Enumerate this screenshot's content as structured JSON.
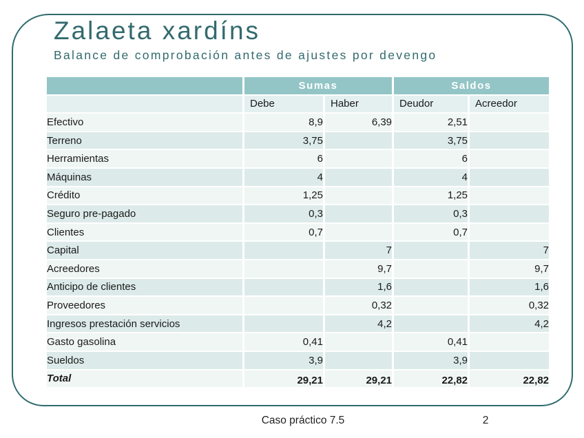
{
  "slide": {
    "title": "Zalaeta xardíns",
    "subtitle": "Balance de comprobación antes de ajustes por devengo",
    "footer_caption": "Caso práctico 7.5",
    "page_number": "2"
  },
  "colors": {
    "accent_teal": "#2E6B6D",
    "header_band": "#93C5C6",
    "subheader_bg": "#E4EFEF",
    "row_light": "#EFF6F4",
    "row_dark": "#DCEBE9",
    "title_text": "#336A6D"
  },
  "table": {
    "group_headers": [
      {
        "label": "",
        "colspan": 1
      },
      {
        "label": "Sumas",
        "colspan": 2
      },
      {
        "label": "Saldos",
        "colspan": 2
      }
    ],
    "column_headers": [
      "",
      "Debe",
      "Haber",
      "Deudor",
      "Acreedor"
    ],
    "rows": [
      {
        "account": "Efectivo",
        "debe": "8,9",
        "haber": "6,39",
        "deudor": "2,51",
        "acreedor": ""
      },
      {
        "account": "Terreno",
        "debe": "3,75",
        "haber": "",
        "deudor": "3,75",
        "acreedor": ""
      },
      {
        "account": "Herramientas",
        "debe": "6",
        "haber": "",
        "deudor": "6",
        "acreedor": ""
      },
      {
        "account": "Máquinas",
        "debe": "4",
        "haber": "",
        "deudor": "4",
        "acreedor": ""
      },
      {
        "account": "Crédito",
        "debe": "1,25",
        "haber": "",
        "deudor": "1,25",
        "acreedor": ""
      },
      {
        "account": "Seguro pre-pagado",
        "debe": "0,3",
        "haber": "",
        "deudor": "0,3",
        "acreedor": ""
      },
      {
        "account": "Clientes",
        "debe": "0,7",
        "haber": "",
        "deudor": "0,7",
        "acreedor": ""
      },
      {
        "account": "Capital",
        "debe": "",
        "haber": "7",
        "deudor": "",
        "acreedor": "7"
      },
      {
        "account": "Acreedores",
        "debe": "",
        "haber": "9,7",
        "deudor": "",
        "acreedor": "9,7"
      },
      {
        "account": "Anticipo de clientes",
        "debe": "",
        "haber": "1,6",
        "deudor": "",
        "acreedor": "1,6"
      },
      {
        "account": "Proveedores",
        "debe": "",
        "haber": "0,32",
        "deudor": "",
        "acreedor": "0,32"
      },
      {
        "account": "Ingresos prestación servicios",
        "debe": "",
        "haber": "4,2",
        "deudor": "",
        "acreedor": "4,2"
      },
      {
        "account": "Gasto gasolina",
        "debe": "0,41",
        "haber": "",
        "deudor": "0,41",
        "acreedor": ""
      },
      {
        "account": "Sueldos",
        "debe": "3,9",
        "haber": "",
        "deudor": "3,9",
        "acreedor": ""
      }
    ],
    "total_row": {
      "account": "Total",
      "debe": "29,21",
      "haber": "29,21",
      "deudor": "22,82",
      "acreedor": "22,82"
    }
  }
}
